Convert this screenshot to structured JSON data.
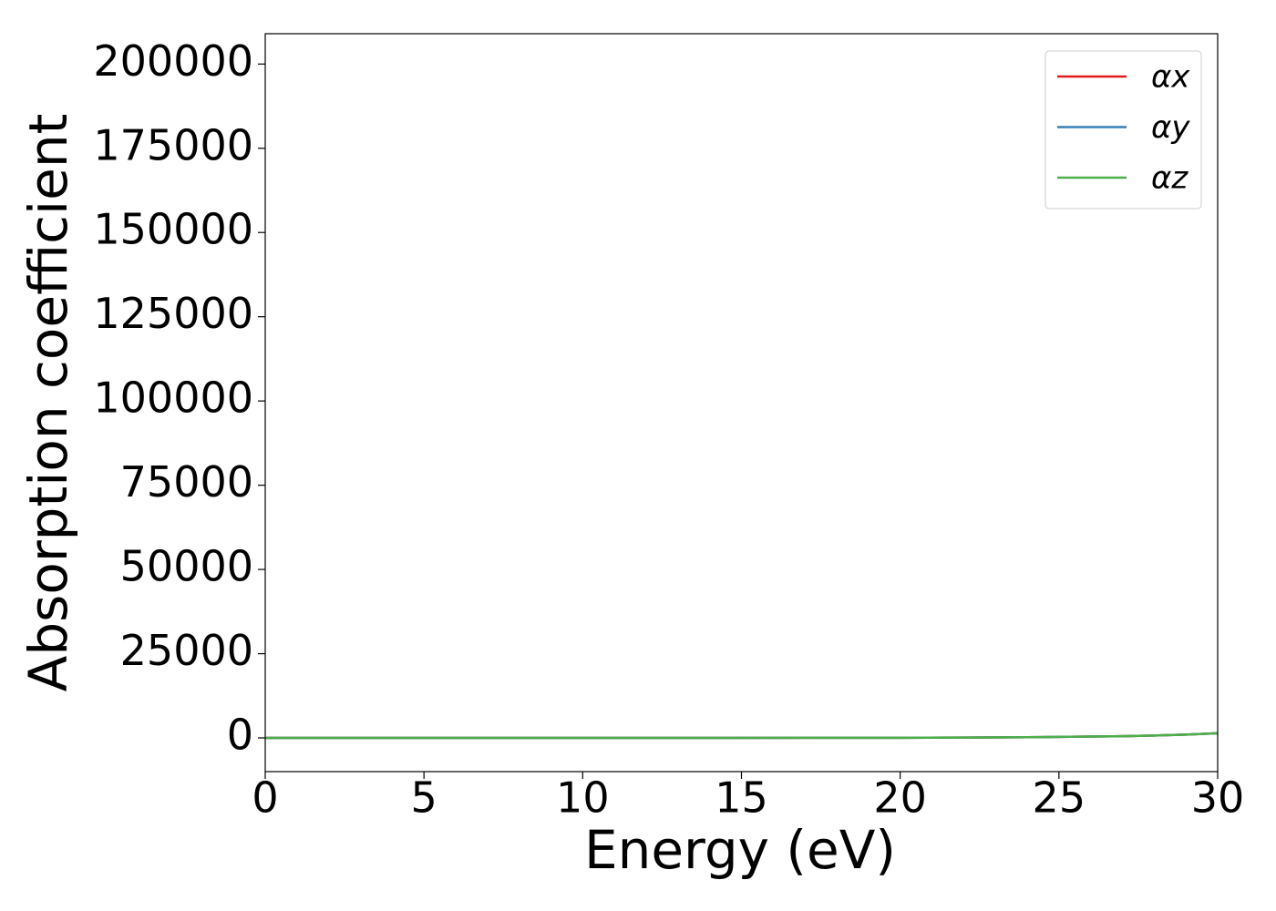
{
  "chart_data": {
    "type": "line",
    "xlabel": "Energy (eV)",
    "ylabel": "Absorption coefficient",
    "x": [
      0,
      5,
      10,
      15,
      20,
      22,
      24,
      25,
      26,
      27,
      28,
      29,
      30
    ],
    "series": [
      {
        "name": "αx",
        "color": "#e41a1c",
        "values": [
          0,
          0,
          0,
          0,
          50,
          100,
          200,
          300,
          400,
          500,
          700,
          1000,
          1400
        ]
      },
      {
        "name": "αy",
        "color": "#377eb8",
        "values": [
          0,
          0,
          0,
          0,
          50,
          100,
          200,
          300,
          400,
          500,
          700,
          1000,
          1400
        ]
      },
      {
        "name": "αz",
        "color": "#4daf4a",
        "values": [
          0,
          0,
          0,
          0,
          50,
          100,
          200,
          300,
          400,
          500,
          700,
          1000,
          1400
        ]
      }
    ],
    "xlim": [
      0,
      30
    ],
    "xticks": [
      0,
      5,
      10,
      15,
      20,
      25,
      30
    ],
    "ylim": [
      -10000,
      209000
    ],
    "yticks": [
      0,
      25000,
      50000,
      75000,
      100000,
      125000,
      150000,
      175000,
      200000
    ],
    "grid": false,
    "legend": "upper right"
  }
}
